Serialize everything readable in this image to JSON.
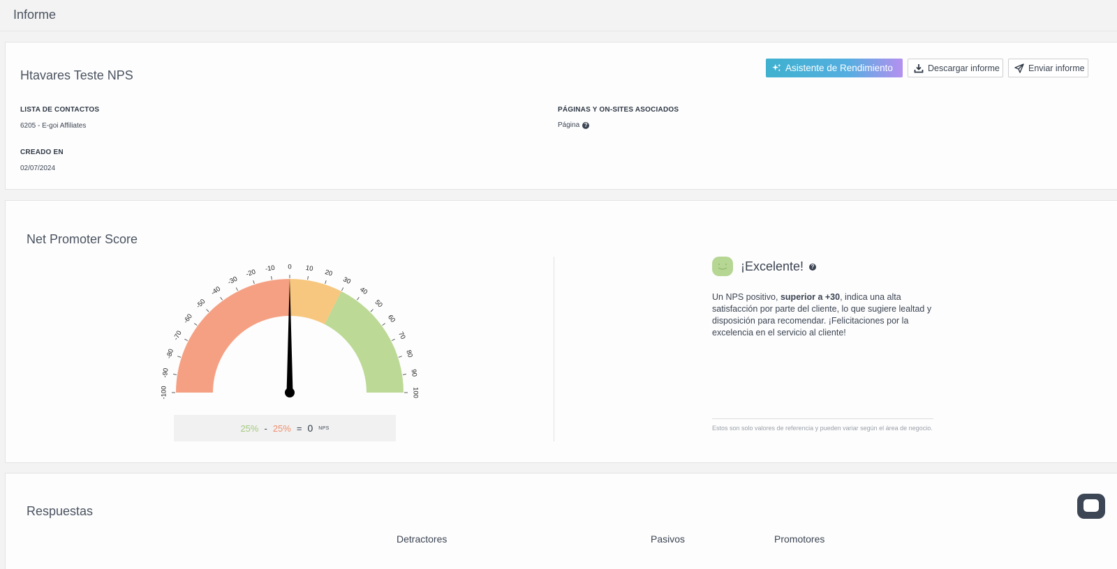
{
  "header": {
    "title": "Informe"
  },
  "survey": {
    "title": "Htavares Teste NPS",
    "contacts_label": "LISTA DE CONTACTOS",
    "contacts_value": "6205 - E-goi Affiliates",
    "created_label": "CREADO EN",
    "created_value": "02/07/2024",
    "pages_label": "PÁGINAS Y ON-SITES ASOCIADOS",
    "pages_value": "Página"
  },
  "toolbar": {
    "assistant_label": "Asistente de Rendimiento",
    "download_label": "Descargar informe",
    "send_label": "Enviar informe"
  },
  "nps": {
    "section_title": "Net Promoter Score",
    "score": 0,
    "gauge_min": -100,
    "gauge_max": 100,
    "zones": [
      {
        "from": -100,
        "to": 0,
        "color": "#f5a083"
      },
      {
        "from": 0,
        "to": 30,
        "color": "#f7c77f"
      },
      {
        "from": 30,
        "to": 100,
        "color": "#bcd995"
      }
    ],
    "promoters_pct": "25%",
    "minus": "-",
    "detractors_pct": "25%",
    "equals": "=",
    "nps_value": "0",
    "nps_unit": "NPS",
    "verdict": "¡Excelente!",
    "desc_pre": "Un NPS positivo, ",
    "desc_bold": "superior a +30",
    "desc_post": ", indica una alta satisfacción por parte del cliente, lo que sugiere lealtad y disposición para recomendar. ¡Felicitaciones por la excelencia en el servicio al cliente!",
    "reference_note": "Estos son solo valores de referencia y pueden variar según el área de negocio."
  },
  "responses": {
    "section_title": "Respuestas",
    "columns": [
      "Detractores",
      "Pasivos",
      "Promotores"
    ]
  },
  "colors": {
    "accent_gradient_start": "#3fb1cf",
    "accent_gradient_end": "#b490f0",
    "promoter": "#a3c97f",
    "detractor": "#ef8f6e"
  }
}
